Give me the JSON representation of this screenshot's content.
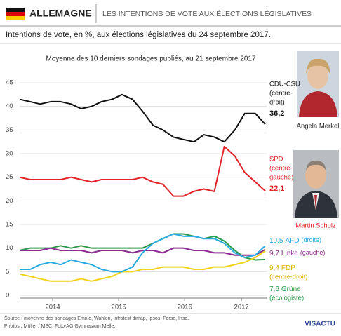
{
  "header": {
    "country": "ALLEMAGNE",
    "title": "LES INTENTIONS DE VOTE AUX ÉLECTIONS LÉGISLATIVES",
    "subtitle": "Intentions de vote, en %, aux élections législatives du 24 septembre 2017."
  },
  "chart_data": {
    "type": "line",
    "title": "Moyenne des 10 derniers sondages publiés, au 21 septembre 2017",
    "x": [
      2014,
      2014.16,
      2014.31,
      2014.47,
      2014.62,
      2014.78,
      2014.93,
      2015.09,
      2015.24,
      2015.4,
      2015.55,
      2015.71,
      2015.86,
      2016.02,
      2016.17,
      2016.33,
      2016.48,
      2016.64,
      2016.79,
      2016.95,
      2017.1,
      2017.26,
      2017.41,
      2017.57,
      2017.72
    ],
    "xlim": [
      2014,
      2017.72
    ],
    "xticks": [
      {
        "value": 2014.5,
        "label": "2014"
      },
      {
        "value": 2015.5,
        "label": "2015"
      },
      {
        "value": 2016.5,
        "label": "2016"
      },
      {
        "value": 2017.36,
        "label": "2017"
      }
    ],
    "ylim": [
      0,
      45
    ],
    "yticks": [
      0,
      5,
      10,
      15,
      20,
      25,
      30,
      35,
      40,
      45
    ],
    "grid": true,
    "series": [
      {
        "name": "CDU-CSU",
        "description": [
          "(centre-",
          "droit)"
        ],
        "color": "#111111",
        "person": "Angela Merkel",
        "values": [
          41.5,
          41,
          40.5,
          41,
          41,
          40.5,
          39.5,
          40,
          41,
          41.5,
          42.5,
          41.5,
          39,
          36,
          35,
          33.5,
          33,
          32.5,
          34,
          33.5,
          32.5,
          35,
          38.5,
          38.5,
          36.2
        ],
        "value_labels": [
          "",
          "",
          "",
          "",
          "",
          "",
          "",
          "",
          "",
          "",
          "",
          "",
          "",
          "",
          "",
          "",
          "",
          "",
          "",
          "",
          "",
          "",
          "",
          "",
          "36,2"
        ]
      },
      {
        "name": "SPD",
        "description": [
          "(centre-",
          "gauche)"
        ],
        "color": "#e2232a",
        "person": "Martin Schulz",
        "values": [
          25,
          24.5,
          24.5,
          24.5,
          24.5,
          25,
          24.5,
          24,
          24.5,
          24.5,
          24.5,
          24.5,
          25,
          24,
          23.5,
          21,
          21,
          22,
          22.5,
          22,
          31.5,
          29.5,
          26,
          24,
          22.1
        ],
        "value_labels": [
          "",
          "",
          "",
          "",
          "",
          "",
          "",
          "",
          "",
          "",
          "",
          "",
          "",
          "",
          "",
          "",
          "",
          "",
          "",
          "",
          "",
          "",
          "",
          "",
          "22,1"
        ]
      },
      {
        "name": "AFD",
        "description": [
          "(droite)"
        ],
        "color": "#29abe2",
        "values": [
          5.5,
          5.5,
          6.5,
          7,
          6.5,
          7.5,
          7,
          6.5,
          5.5,
          5,
          5,
          6,
          9,
          11,
          12,
          13,
          12.5,
          12.5,
          12,
          12,
          11,
          9,
          8,
          8.5,
          10.5
        ],
        "value_labels": [
          "",
          "",
          "",
          "",
          "",
          "",
          "",
          "",
          "",
          "",
          "",
          "",
          "",
          "",
          "",
          "",
          "",
          "",
          "",
          "",
          "",
          "",
          "",
          "",
          "10,5"
        ]
      },
      {
        "name": "Linke",
        "description": [
          "(gauche)"
        ],
        "color": "#8b2c8f",
        "values": [
          9.5,
          9.5,
          9.5,
          10,
          9.5,
          9.5,
          9.5,
          9,
          9.5,
          9.5,
          9.5,
          9,
          9.5,
          9.5,
          9,
          10,
          10,
          9.5,
          9.5,
          9,
          9,
          8.5,
          8.5,
          8.5,
          9.7
        ],
        "value_labels": [
          "",
          "",
          "",
          "",
          "",
          "",
          "",
          "",
          "",
          "",
          "",
          "",
          "",
          "",
          "",
          "",
          "",
          "",
          "",
          "",
          "",
          "",
          "",
          "",
          "9,7"
        ]
      },
      {
        "name": "FDP",
        "description": [
          "(centre-droit)"
        ],
        "color": "#f2d21a",
        "values": [
          4.5,
          4,
          3.5,
          3,
          3,
          3,
          3.5,
          3,
          3.5,
          4,
          5,
          5,
          5.5,
          5.5,
          6,
          6,
          6,
          5.5,
          5.5,
          6,
          6,
          6.5,
          7,
          8,
          9.4
        ],
        "value_labels": [
          "",
          "",
          "",
          "",
          "",
          "",
          "",
          "",
          "",
          "",
          "",
          "",
          "",
          "",
          "",
          "",
          "",
          "",
          "",
          "",
          "",
          "",
          "",
          "",
          "9,4"
        ]
      },
      {
        "name": "Grüne",
        "description": [
          "(écologiste)"
        ],
        "color": "#2a9a48",
        "values": [
          9.5,
          10,
          10,
          10,
          10.5,
          10,
          10.5,
          10,
          10,
          10,
          10,
          10,
          10,
          11,
          12,
          13,
          13,
          12.5,
          12,
          12.5,
          11.5,
          9.5,
          8,
          7.5,
          7.6
        ],
        "value_labels": [
          "",
          "",
          "",
          "",
          "",
          "",
          "",
          "",
          "",
          "",
          "",
          "",
          "",
          "",
          "",
          "",
          "",
          "",
          "",
          "",
          "",
          "",
          "",
          "",
          "7,6"
        ]
      }
    ]
  },
  "footer": {
    "source": "Source : moyenne des sondages Emnid, Wahlen, Infratest dimap, Ipsos, Forsa, Insa.",
    "photos": "Photos : Müller / MSC, Foto-AG Gymnasium Melle.",
    "logo": "VISACTU"
  }
}
